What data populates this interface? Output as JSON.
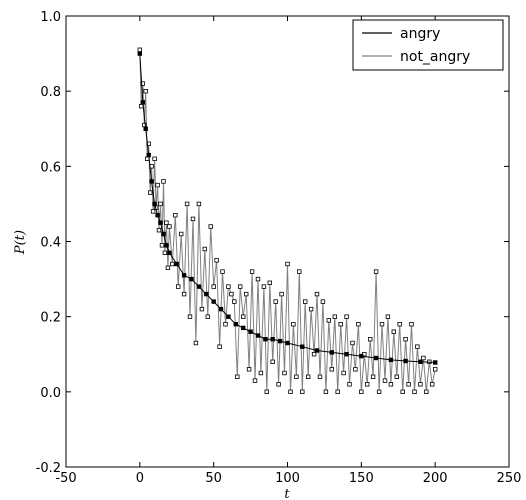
{
  "chart_data": {
    "type": "line",
    "xlabel": "t",
    "ylabel": "P(t)",
    "xlim": [
      -50,
      250
    ],
    "ylim": [
      -0.2,
      1.0
    ],
    "xticks": [
      -50,
      0,
      50,
      100,
      150,
      200,
      250
    ],
    "yticks": [
      -0.2,
      0.0,
      0.2,
      0.4,
      0.6,
      0.8,
      1.0
    ],
    "xtick_labels": [
      "-50",
      "0",
      "50",
      "100",
      "150",
      "200",
      "250"
    ],
    "ytick_labels": [
      "-0.2",
      "0.0",
      "0.2",
      "0.4",
      "0.6",
      "0.8",
      "1.0"
    ],
    "grid": false,
    "legend_position": "top-right",
    "series": [
      {
        "name": "angry",
        "color": "#000000",
        "marker": "square",
        "x": [
          0,
          2,
          4,
          6,
          8,
          10,
          12,
          14,
          16,
          18,
          20,
          25,
          30,
          35,
          40,
          45,
          50,
          55,
          60,
          65,
          70,
          75,
          80,
          85,
          90,
          95,
          100,
          110,
          120,
          130,
          140,
          150,
          160,
          170,
          180,
          190,
          200
        ],
        "values": [
          0.9,
          0.77,
          0.7,
          0.63,
          0.56,
          0.5,
          0.47,
          0.45,
          0.42,
          0.39,
          0.37,
          0.34,
          0.31,
          0.3,
          0.28,
          0.26,
          0.24,
          0.22,
          0.2,
          0.18,
          0.17,
          0.16,
          0.15,
          0.14,
          0.14,
          0.135,
          0.13,
          0.12,
          0.11,
          0.105,
          0.1,
          0.095,
          0.09,
          0.085,
          0.082,
          0.08,
          0.078
        ]
      },
      {
        "name": "not_angry",
        "color": "#808080",
        "marker": "square",
        "x": [
          0,
          1,
          2,
          3,
          4,
          5,
          6,
          7,
          8,
          9,
          10,
          11,
          12,
          13,
          14,
          15,
          16,
          17,
          18,
          19,
          20,
          22,
          24,
          26,
          28,
          30,
          32,
          34,
          36,
          38,
          40,
          42,
          44,
          46,
          48,
          50,
          52,
          54,
          56,
          58,
          60,
          62,
          64,
          66,
          68,
          70,
          72,
          74,
          76,
          78,
          80,
          82,
          84,
          86,
          88,
          90,
          92,
          94,
          96,
          98,
          100,
          102,
          104,
          106,
          108,
          110,
          112,
          114,
          116,
          118,
          120,
          122,
          124,
          126,
          128,
          130,
          132,
          134,
          136,
          138,
          140,
          142,
          144,
          146,
          148,
          150,
          152,
          154,
          156,
          158,
          160,
          162,
          164,
          166,
          168,
          170,
          172,
          174,
          176,
          178,
          180,
          182,
          184,
          186,
          188,
          190,
          192,
          194,
          196,
          198,
          200
        ],
        "values": [
          0.91,
          0.76,
          0.82,
          0.71,
          0.8,
          0.62,
          0.66,
          0.53,
          0.6,
          0.48,
          0.62,
          0.49,
          0.55,
          0.43,
          0.5,
          0.39,
          0.56,
          0.37,
          0.45,
          0.33,
          0.44,
          0.34,
          0.47,
          0.28,
          0.42,
          0.26,
          0.5,
          0.2,
          0.46,
          0.13,
          0.5,
          0.22,
          0.38,
          0.2,
          0.44,
          0.28,
          0.35,
          0.12,
          0.32,
          0.18,
          0.28,
          0.26,
          0.24,
          0.04,
          0.28,
          0.2,
          0.26,
          0.06,
          0.32,
          0.03,
          0.3,
          0.05,
          0.28,
          0.0,
          0.29,
          0.08,
          0.24,
          0.02,
          0.26,
          0.05,
          0.34,
          0.0,
          0.18,
          0.04,
          0.32,
          0.0,
          0.24,
          0.04,
          0.22,
          0.1,
          0.26,
          0.04,
          0.24,
          0.0,
          0.19,
          0.06,
          0.2,
          0.0,
          0.18,
          0.05,
          0.2,
          0.02,
          0.13,
          0.06,
          0.18,
          0.0,
          0.1,
          0.02,
          0.14,
          0.04,
          0.32,
          0.0,
          0.18,
          0.03,
          0.2,
          0.02,
          0.16,
          0.04,
          0.18,
          0.0,
          0.14,
          0.02,
          0.18,
          0.0,
          0.12,
          0.02,
          0.09,
          0.0,
          0.08,
          0.02,
          0.06
        ]
      }
    ]
  }
}
